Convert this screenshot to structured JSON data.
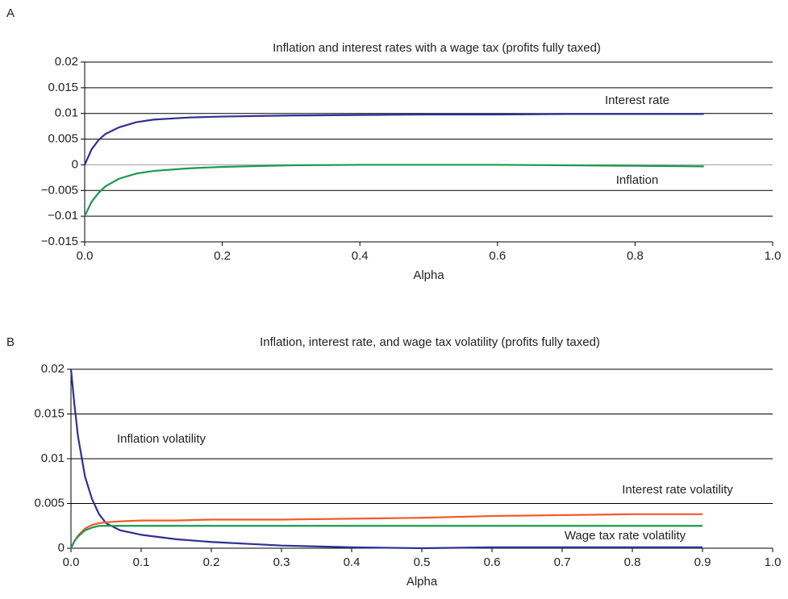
{
  "chart_data": [
    {
      "type": "line",
      "panel": "A",
      "title": "Inflation and interest rates with a wage tax (profits fully taxed)",
      "x_label": "Alpha",
      "x": [
        0,
        0.01,
        0.02,
        0.03,
        0.05,
        0.075,
        0.1,
        0.15,
        0.2,
        0.3,
        0.4,
        0.5,
        0.6,
        0.7,
        0.8,
        0.9
      ],
      "series": [
        {
          "name": "Interest rate",
          "color": "#2e3192",
          "values": [
            0,
            0.003,
            0.0048,
            0.006,
            0.0073,
            0.0083,
            0.0088,
            0.0092,
            0.0094,
            0.0096,
            0.0097,
            0.0098,
            0.0098,
            0.0099,
            0.0099,
            0.0099
          ]
        },
        {
          "name": "Inflation",
          "color": "#1a9a50",
          "values": [
            -0.01,
            -0.0072,
            -0.0055,
            -0.0042,
            -0.0027,
            -0.0017,
            -0.0012,
            -0.0007,
            -0.0004,
            -0.0001,
            0,
            0,
            0,
            -0.0001,
            -0.0002,
            -0.0003
          ]
        }
      ],
      "xlim": [
        0,
        1
      ],
      "xticks": [
        {
          "value": 0,
          "label": "0.0"
        },
        {
          "value": 0.2,
          "label": "0.2"
        },
        {
          "value": 0.4,
          "label": "0.4"
        },
        {
          "value": 0.6,
          "label": "0.6"
        },
        {
          "value": 0.8,
          "label": "0.8"
        },
        {
          "value": 1,
          "label": "1.0"
        }
      ],
      "ylim": [
        -0.015,
        0.02
      ],
      "yticks": [
        {
          "value": -0.015,
          "label": "−0.015"
        },
        {
          "value": -0.01,
          "label": "−0.01"
        },
        {
          "value": -0.005,
          "label": "−0.005"
        },
        0,
        0.005,
        0.01,
        0.015,
        0.02
      ],
      "grid": true
    },
    {
      "type": "line",
      "panel": "B",
      "title": "Inflation, interest rate, and wage tax volatility (profits fully taxed)",
      "x_label": "Alpha",
      "x": [
        0,
        0.005,
        0.01,
        0.02,
        0.03,
        0.04,
        0.05,
        0.07,
        0.1,
        0.15,
        0.2,
        0.3,
        0.4,
        0.5,
        0.6,
        0.7,
        0.8,
        0.9
      ],
      "series": [
        {
          "name": "Inflation volatility",
          "color": "#2e3192",
          "values": [
            0.02,
            0.016,
            0.0125,
            0.008,
            0.0055,
            0.0038,
            0.0028,
            0.002,
            0.0015,
            0.001,
            0.0007,
            0.0003,
            0.0001,
            0,
            0.0001,
            0.0001,
            0.0001,
            0.0001
          ]
        },
        {
          "name": "Interest rate volatility",
          "color": "#f05a28",
          "values": [
            0,
            0.0008,
            0.0014,
            0.0022,
            0.0026,
            0.0028,
            0.0029,
            0.003,
            0.0031,
            0.0031,
            0.0032,
            0.0032,
            0.0033,
            0.0034,
            0.0036,
            0.0037,
            0.0038,
            0.0038
          ]
        },
        {
          "name": "Wage tax rate volatility",
          "color": "#1a9a50",
          "values": [
            0,
            0.0008,
            0.0013,
            0.002,
            0.0023,
            0.0025,
            0.0025,
            0.0025,
            0.0025,
            0.0025,
            0.0025,
            0.0025,
            0.0025,
            0.0025,
            0.0025,
            0.0025,
            0.0025,
            0.0025
          ]
        }
      ],
      "xlim": [
        0,
        1
      ],
      "xticks": [
        {
          "value": 0,
          "label": "0.0"
        },
        {
          "value": 0.1,
          "label": "0.1"
        },
        {
          "value": 0.2,
          "label": "0.2"
        },
        {
          "value": 0.3,
          "label": "0.3"
        },
        {
          "value": 0.4,
          "label": "0.4"
        },
        {
          "value": 0.5,
          "label": "0.5"
        },
        {
          "value": 0.6,
          "label": "0.6"
        },
        {
          "value": 0.7,
          "label": "0.7"
        },
        {
          "value": 0.8,
          "label": "0.8"
        },
        {
          "value": 0.9,
          "label": "0.9"
        },
        {
          "value": 1,
          "label": "1.0"
        }
      ],
      "ylim": [
        0,
        0.02
      ],
      "yticks": [
        0,
        0.005,
        0.01,
        0.015,
        0.02
      ],
      "grid": true
    }
  ]
}
